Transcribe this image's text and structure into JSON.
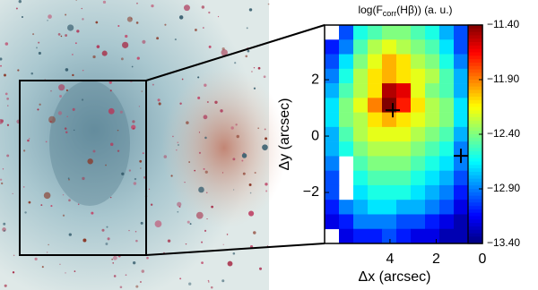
{
  "chart_data": {
    "type": "heatmap",
    "title": {
      "main": "log(F",
      "subscript": "corr",
      "rest": "(Hβ)) (a. u.)"
    },
    "xlabel": "Δx (arcsec)",
    "ylabel": "Δy (arcsec)",
    "xlim": [
      6.83,
      0
    ],
    "ylim": [
      -3.81,
      3.94
    ],
    "xticks": [
      4,
      2,
      0
    ],
    "yticks": [
      2,
      0,
      {
        "value": -2,
        "label": "−2"
      }
    ],
    "clim": [
      -13.4,
      -11.4
    ],
    "cticks": [
      {
        "value": -11.4,
        "label": "−11.40"
      },
      {
        "value": -11.9,
        "label": "−11.90"
      },
      {
        "value": -12.4,
        "label": "−12.40"
      },
      {
        "value": -12.9,
        "label": "−12.90"
      },
      {
        "value": -13.4,
        "label": "−13.40"
      }
    ],
    "colormap": "jet",
    "z": [
      [
        null,
        -13.0,
        -12.6,
        -12.5,
        -12.4,
        -12.4,
        -12.5,
        -12.6,
        -12.8,
        -13.0
      ],
      [
        -13.1,
        -12.9,
        -12.5,
        -12.3,
        -12.2,
        -12.3,
        -12.4,
        -12.5,
        -12.7,
        -13.0
      ],
      [
        -13.0,
        -12.7,
        -12.4,
        -12.2,
        -12.0,
        -12.1,
        -12.3,
        -12.4,
        -12.6,
        -12.9
      ],
      [
        -12.9,
        -12.6,
        -12.3,
        -12.1,
        -12.0,
        -12.1,
        -12.2,
        -12.3,
        -12.5,
        -12.8
      ],
      [
        -12.8,
        -12.5,
        -12.3,
        -12.1,
        -11.5,
        -11.6,
        -12.2,
        -12.4,
        -12.5,
        -12.8
      ],
      [
        -12.7,
        -12.4,
        -12.2,
        -11.9,
        -11.4,
        -11.7,
        -12.1,
        -12.3,
        -12.4,
        -12.7
      ],
      [
        -12.7,
        -12.4,
        -12.3,
        -12.1,
        -12.0,
        -12.1,
        -12.2,
        -12.3,
        -12.4,
        -12.7
      ],
      [
        -12.8,
        -12.5,
        -12.3,
        -12.2,
        -12.2,
        -12.2,
        -12.3,
        -12.4,
        -12.5,
        -12.8
      ],
      [
        -12.8,
        -12.6,
        -12.4,
        -12.3,
        -12.3,
        -12.3,
        -12.4,
        -12.5,
        -12.6,
        -12.9
      ],
      [
        -12.9,
        null,
        -12.5,
        -12.4,
        -12.4,
        -12.4,
        -12.5,
        -12.6,
        -12.7,
        -12.9
      ],
      [
        -13.0,
        null,
        -12.6,
        -12.5,
        -12.5,
        -12.5,
        -12.6,
        -12.7,
        -12.8,
        -13.0
      ],
      [
        -13.0,
        null,
        -12.7,
        -12.6,
        -12.6,
        -12.6,
        -12.7,
        -12.8,
        -12.9,
        -13.1
      ],
      [
        -13.1,
        -12.9,
        -12.8,
        -12.7,
        -12.7,
        -12.8,
        -12.8,
        -12.9,
        -13.0,
        -13.2
      ],
      [
        -13.2,
        -13.1,
        -12.9,
        -12.9,
        -12.9,
        -13.0,
        -13.0,
        -13.1,
        -13.2,
        -13.3
      ],
      [
        null,
        -13.2,
        -13.1,
        -13.1,
        -13.0,
        -13.1,
        -13.2,
        -13.2,
        -13.3,
        -13.3
      ]
    ],
    "markers": {
      "x": [
        3.88,
        0.93
      ],
      "y": [
        0.92,
        -0.7
      ]
    }
  }
}
